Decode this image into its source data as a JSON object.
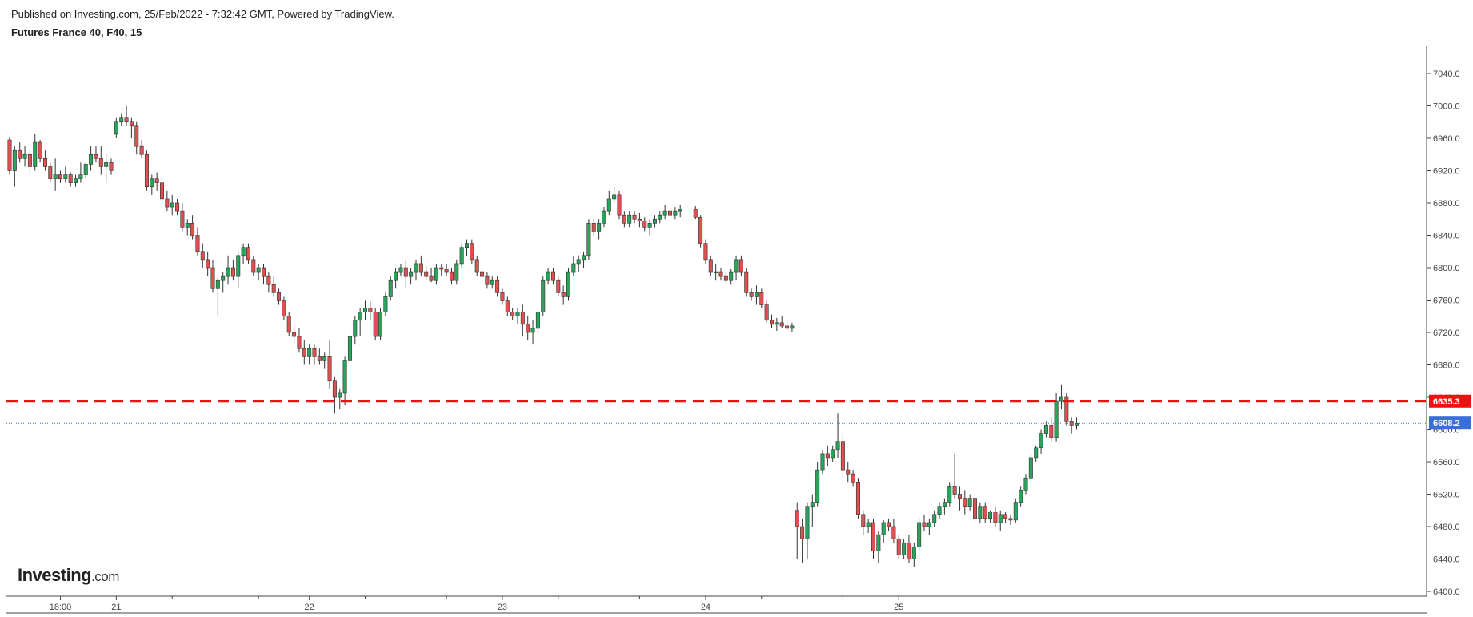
{
  "header": {
    "published": "Published on Investing.com, 25/Feb/2022 - 7:32:42 GMT, Powered by TradingView.",
    "symbol": "Futures France 40, F40, 15"
  },
  "logo": {
    "brand": "Investing",
    "suffix": ".com"
  },
  "colors": {
    "up": "#26a65b",
    "down": "#e05050",
    "wick": "#333333",
    "resistance": "#ee1111",
    "last_price_line": "#3a6fd8",
    "axis": "#444444"
  },
  "chart_data": {
    "type": "candlestick",
    "title": "Futures France 40, F40, 15",
    "xlabel": "",
    "ylabel": "",
    "ylim": [
      6390,
      7070
    ],
    "y_ticks": [
      6400,
      6440,
      6480,
      6520,
      6560,
      6600,
      6640,
      6680,
      6720,
      6760,
      6800,
      6840,
      6880,
      6920,
      6960,
      7000,
      7040
    ],
    "x_ticks": [
      {
        "label": "18:00",
        "bar": 10
      },
      {
        "label": "21",
        "bar": 21
      },
      {
        "label": "22",
        "bar": 59
      },
      {
        "label": "23",
        "bar": 97
      },
      {
        "label": "24",
        "bar": 135
      },
      {
        "label": "25",
        "bar": 173
      }
    ],
    "minor_x_ticks": [
      32,
      49,
      70,
      86,
      108,
      124,
      146,
      162
    ],
    "price_lines": [
      {
        "label": "6635.3",
        "value": 6635.3,
        "style": "dashed",
        "color": "#ee1111"
      },
      {
        "label": "6608.2",
        "value": 6608.2,
        "style": "dotted",
        "color": "#3a6fd8"
      }
    ],
    "gap_bars": [
      133
    ],
    "candles": [
      [
        6958,
        6962,
        6915,
        6920
      ],
      [
        6920,
        6950,
        6900,
        6945
      ],
      [
        6945,
        6955,
        6930,
        6935
      ],
      [
        6935,
        6950,
        6925,
        6940
      ],
      [
        6940,
        6945,
        6915,
        6925
      ],
      [
        6925,
        6965,
        6920,
        6955
      ],
      [
        6955,
        6958,
        6930,
        6935
      ],
      [
        6935,
        6945,
        6920,
        6925
      ],
      [
        6925,
        6930,
        6905,
        6910
      ],
      [
        6910,
        6935,
        6895,
        6915
      ],
      [
        6915,
        6920,
        6905,
        6910
      ],
      [
        6910,
        6925,
        6905,
        6915
      ],
      [
        6915,
        6918,
        6900,
        6905
      ],
      [
        6905,
        6915,
        6900,
        6910
      ],
      [
        6910,
        6930,
        6905,
        6915
      ],
      [
        6915,
        6930,
        6910,
        6928
      ],
      [
        6928,
        6950,
        6920,
        6940
      ],
      [
        6940,
        6950,
        6930,
        6935
      ],
      [
        6935,
        6950,
        6915,
        6925
      ],
      [
        6925,
        6940,
        6905,
        6930
      ],
      [
        6930,
        6935,
        6915,
        6920
      ],
      [
        6965,
        6985,
        6960,
        6980
      ],
      [
        6980,
        6990,
        6975,
        6985
      ],
      [
        6985,
        7000,
        6975,
        6980
      ],
      [
        6980,
        6985,
        6960,
        6975
      ],
      [
        6975,
        6980,
        6940,
        6950
      ],
      [
        6950,
        6958,
        6935,
        6940
      ],
      [
        6940,
        6945,
        6895,
        6900
      ],
      [
        6900,
        6915,
        6890,
        6910
      ],
      [
        6910,
        6918,
        6895,
        6905
      ],
      [
        6905,
        6910,
        6875,
        6885
      ],
      [
        6885,
        6895,
        6870,
        6875
      ],
      [
        6875,
        6890,
        6865,
        6880
      ],
      [
        6880,
        6885,
        6865,
        6870
      ],
      [
        6870,
        6880,
        6845,
        6850
      ],
      [
        6850,
        6860,
        6840,
        6855
      ],
      [
        6855,
        6865,
        6835,
        6840
      ],
      [
        6840,
        6850,
        6815,
        6820
      ],
      [
        6820,
        6830,
        6800,
        6810
      ],
      [
        6810,
        6820,
        6790,
        6800
      ],
      [
        6800,
        6810,
        6770,
        6775
      ],
      [
        6775,
        6790,
        6740,
        6785
      ],
      [
        6785,
        6795,
        6770,
        6790
      ],
      [
        6790,
        6815,
        6780,
        6800
      ],
      [
        6800,
        6810,
        6785,
        6790
      ],
      [
        6790,
        6820,
        6775,
        6815
      ],
      [
        6815,
        6830,
        6805,
        6825
      ],
      [
        6825,
        6830,
        6805,
        6810
      ],
      [
        6810,
        6815,
        6790,
        6795
      ],
      [
        6795,
        6805,
        6785,
        6800
      ],
      [
        6800,
        6805,
        6780,
        6790
      ],
      [
        6790,
        6795,
        6770,
        6780
      ],
      [
        6780,
        6790,
        6765,
        6770
      ],
      [
        6770,
        6775,
        6755,
        6760
      ],
      [
        6760,
        6765,
        6735,
        6740
      ],
      [
        6740,
        6745,
        6715,
        6720
      ],
      [
        6720,
        6728,
        6705,
        6715
      ],
      [
        6715,
        6725,
        6695,
        6700
      ],
      [
        6700,
        6710,
        6680,
        6690
      ],
      [
        6690,
        6705,
        6680,
        6700
      ],
      [
        6700,
        6705,
        6680,
        6690
      ],
      [
        6690,
        6700,
        6680,
        6685
      ],
      [
        6685,
        6695,
        6675,
        6690
      ],
      [
        6690,
        6710,
        6650,
        6660
      ],
      [
        6660,
        6665,
        6620,
        6640
      ],
      [
        6640,
        6650,
        6625,
        6645
      ],
      [
        6645,
        6690,
        6630,
        6685
      ],
      [
        6685,
        6720,
        6680,
        6715
      ],
      [
        6715,
        6740,
        6705,
        6735
      ],
      [
        6735,
        6750,
        6715,
        6745
      ],
      [
        6745,
        6760,
        6735,
        6750
      ],
      [
        6750,
        6758,
        6735,
        6745
      ],
      [
        6745,
        6750,
        6710,
        6715
      ],
      [
        6715,
        6750,
        6710,
        6745
      ],
      [
        6745,
        6770,
        6740,
        6765
      ],
      [
        6765,
        6790,
        6760,
        6785
      ],
      [
        6785,
        6800,
        6775,
        6795
      ],
      [
        6795,
        6805,
        6790,
        6800
      ],
      [
        6800,
        6810,
        6775,
        6790
      ],
      [
        6790,
        6800,
        6780,
        6795
      ],
      [
        6795,
        6810,
        6785,
        6805
      ],
      [
        6805,
        6815,
        6790,
        6795
      ],
      [
        6795,
        6802,
        6785,
        6790
      ],
      [
        6790,
        6800,
        6782,
        6785
      ],
      [
        6785,
        6805,
        6780,
        6800
      ],
      [
        6800,
        6805,
        6790,
        6798
      ],
      [
        6798,
        6805,
        6790,
        6795
      ],
      [
        6795,
        6800,
        6780,
        6785
      ],
      [
        6785,
        6810,
        6780,
        6805
      ],
      [
        6805,
        6830,
        6800,
        6825
      ],
      [
        6825,
        6835,
        6815,
        6830
      ],
      [
        6830,
        6835,
        6805,
        6810
      ],
      [
        6810,
        6815,
        6790,
        6795
      ],
      [
        6795,
        6800,
        6785,
        6790
      ],
      [
        6790,
        6795,
        6775,
        6780
      ],
      [
        6780,
        6790,
        6775,
        6785
      ],
      [
        6785,
        6790,
        6765,
        6770
      ],
      [
        6770,
        6775,
        6755,
        6760
      ],
      [
        6760,
        6765,
        6740,
        6745
      ],
      [
        6745,
        6750,
        6735,
        6740
      ],
      [
        6740,
        6750,
        6730,
        6745
      ],
      [
        6745,
        6755,
        6715,
        6730
      ],
      [
        6730,
        6740,
        6710,
        6720
      ],
      [
        6720,
        6735,
        6705,
        6725
      ],
      [
        6725,
        6750,
        6718,
        6745
      ],
      [
        6745,
        6790,
        6740,
        6785
      ],
      [
        6785,
        6800,
        6780,
        6795
      ],
      [
        6795,
        6800,
        6780,
        6785
      ],
      [
        6785,
        6790,
        6765,
        6770
      ],
      [
        6770,
        6778,
        6755,
        6765
      ],
      [
        6765,
        6800,
        6760,
        6795
      ],
      [
        6795,
        6815,
        6790,
        6805
      ],
      [
        6805,
        6815,
        6795,
        6810
      ],
      [
        6810,
        6820,
        6800,
        6815
      ],
      [
        6815,
        6860,
        6810,
        6855
      ],
      [
        6855,
        6860,
        6840,
        6845
      ],
      [
        6845,
        6860,
        6835,
        6855
      ],
      [
        6855,
        6875,
        6850,
        6870
      ],
      [
        6870,
        6895,
        6865,
        6885
      ],
      [
        6885,
        6900,
        6880,
        6890
      ],
      [
        6890,
        6895,
        6860,
        6865
      ],
      [
        6865,
        6870,
        6850,
        6855
      ],
      [
        6855,
        6870,
        6850,
        6865
      ],
      [
        6865,
        6870,
        6855,
        6860
      ],
      [
        6860,
        6868,
        6850,
        6858
      ],
      [
        6858,
        6862,
        6845,
        6850
      ],
      [
        6850,
        6860,
        6840,
        6855
      ],
      [
        6855,
        6865,
        6850,
        6860
      ],
      [
        6860,
        6870,
        6855,
        6865
      ],
      [
        6865,
        6878,
        6860,
        6870
      ],
      [
        6870,
        6878,
        6860,
        6865
      ],
      [
        6865,
        6875,
        6860,
        6870
      ],
      [
        6870,
        6878,
        6862,
        6872
      ],
      [
        6872,
        6876,
        6860,
        6862
      ],
      [
        6862,
        6865,
        6825,
        6830
      ],
      [
        6830,
        6835,
        6805,
        6810
      ],
      [
        6810,
        6815,
        6790,
        6795
      ],
      [
        6795,
        6805,
        6785,
        6795
      ],
      [
        6795,
        6800,
        6785,
        6790
      ],
      [
        6790,
        6795,
        6780,
        6785
      ],
      [
        6785,
        6798,
        6780,
        6795
      ],
      [
        6795,
        6815,
        6785,
        6810
      ],
      [
        6810,
        6815,
        6790,
        6795
      ],
      [
        6795,
        6800,
        6765,
        6770
      ],
      [
        6770,
        6775,
        6760,
        6765
      ],
      [
        6765,
        6778,
        6755,
        6770
      ],
      [
        6770,
        6775,
        6750,
        6755
      ],
      [
        6755,
        6760,
        6732,
        6735
      ],
      [
        6735,
        6742,
        6725,
        6730
      ],
      [
        6730,
        6738,
        6722,
        6732
      ],
      [
        6732,
        6740,
        6725,
        6728
      ],
      [
        6728,
        6735,
        6718,
        6725
      ],
      [
        6725,
        6732,
        6720,
        6728
      ],
      [
        6500,
        6510,
        6440,
        6480
      ],
      [
        6480,
        6490,
        6435,
        6465
      ],
      [
        6465,
        6510,
        6440,
        6505
      ],
      [
        6505,
        6520,
        6480,
        6510
      ],
      [
        6510,
        6560,
        6505,
        6550
      ],
      [
        6550,
        6575,
        6545,
        6570
      ],
      [
        6570,
        6580,
        6555,
        6565
      ],
      [
        6565,
        6580,
        6560,
        6575
      ],
      [
        6575,
        6620,
        6565,
        6585
      ],
      [
        6585,
        6595,
        6540,
        6550
      ],
      [
        6550,
        6560,
        6535,
        6545
      ],
      [
        6545,
        6550,
        6530,
        6535
      ],
      [
        6535,
        6540,
        6490,
        6495
      ],
      [
        6495,
        6500,
        6470,
        6480
      ],
      [
        6480,
        6490,
        6472,
        6485
      ],
      [
        6485,
        6490,
        6440,
        6450
      ],
      [
        6450,
        6475,
        6435,
        6470
      ],
      [
        6470,
        6488,
        6460,
        6485
      ],
      [
        6485,
        6490,
        6475,
        6480
      ],
      [
        6480,
        6490,
        6460,
        6465
      ],
      [
        6465,
        6470,
        6440,
        6445
      ],
      [
        6445,
        6465,
        6440,
        6460
      ],
      [
        6460,
        6470,
        6435,
        6440
      ],
      [
        6440,
        6460,
        6430,
        6455
      ],
      [
        6455,
        6490,
        6450,
        6485
      ],
      [
        6485,
        6495,
        6475,
        6480
      ],
      [
        6480,
        6490,
        6470,
        6485
      ],
      [
        6485,
        6500,
        6480,
        6495
      ],
      [
        6495,
        6510,
        6490,
        6505
      ],
      [
        6505,
        6515,
        6495,
        6510
      ],
      [
        6510,
        6535,
        6505,
        6530
      ],
      [
        6530,
        6570,
        6515,
        6520
      ],
      [
        6520,
        6530,
        6500,
        6515
      ],
      [
        6515,
        6525,
        6495,
        6505
      ],
      [
        6505,
        6520,
        6500,
        6515
      ],
      [
        6515,
        6520,
        6485,
        6490
      ],
      [
        6490,
        6510,
        6485,
        6505
      ],
      [
        6505,
        6510,
        6485,
        6490
      ],
      [
        6490,
        6500,
        6485,
        6498
      ],
      [
        6498,
        6505,
        6480,
        6485
      ],
      [
        6485,
        6500,
        6475,
        6495
      ],
      [
        6495,
        6498,
        6485,
        6490
      ],
      [
        6490,
        6495,
        6482,
        6488
      ],
      [
        6488,
        6515,
        6485,
        6510
      ],
      [
        6510,
        6530,
        6505,
        6525
      ],
      [
        6525,
        6545,
        6520,
        6540
      ],
      [
        6540,
        6570,
        6535,
        6565
      ],
      [
        6565,
        6580,
        6560,
        6578
      ],
      [
        6578,
        6600,
        6570,
        6595
      ],
      [
        6595,
        6610,
        6590,
        6605
      ],
      [
        6605,
        6615,
        6585,
        6590
      ],
      [
        6590,
        6645,
        6585,
        6635
      ],
      [
        6635,
        6655,
        6625,
        6640
      ],
      [
        6640,
        6645,
        6605,
        6610
      ],
      [
        6610,
        6615,
        6595,
        6605
      ],
      [
        6605,
        6615,
        6600,
        6608
      ]
    ]
  }
}
